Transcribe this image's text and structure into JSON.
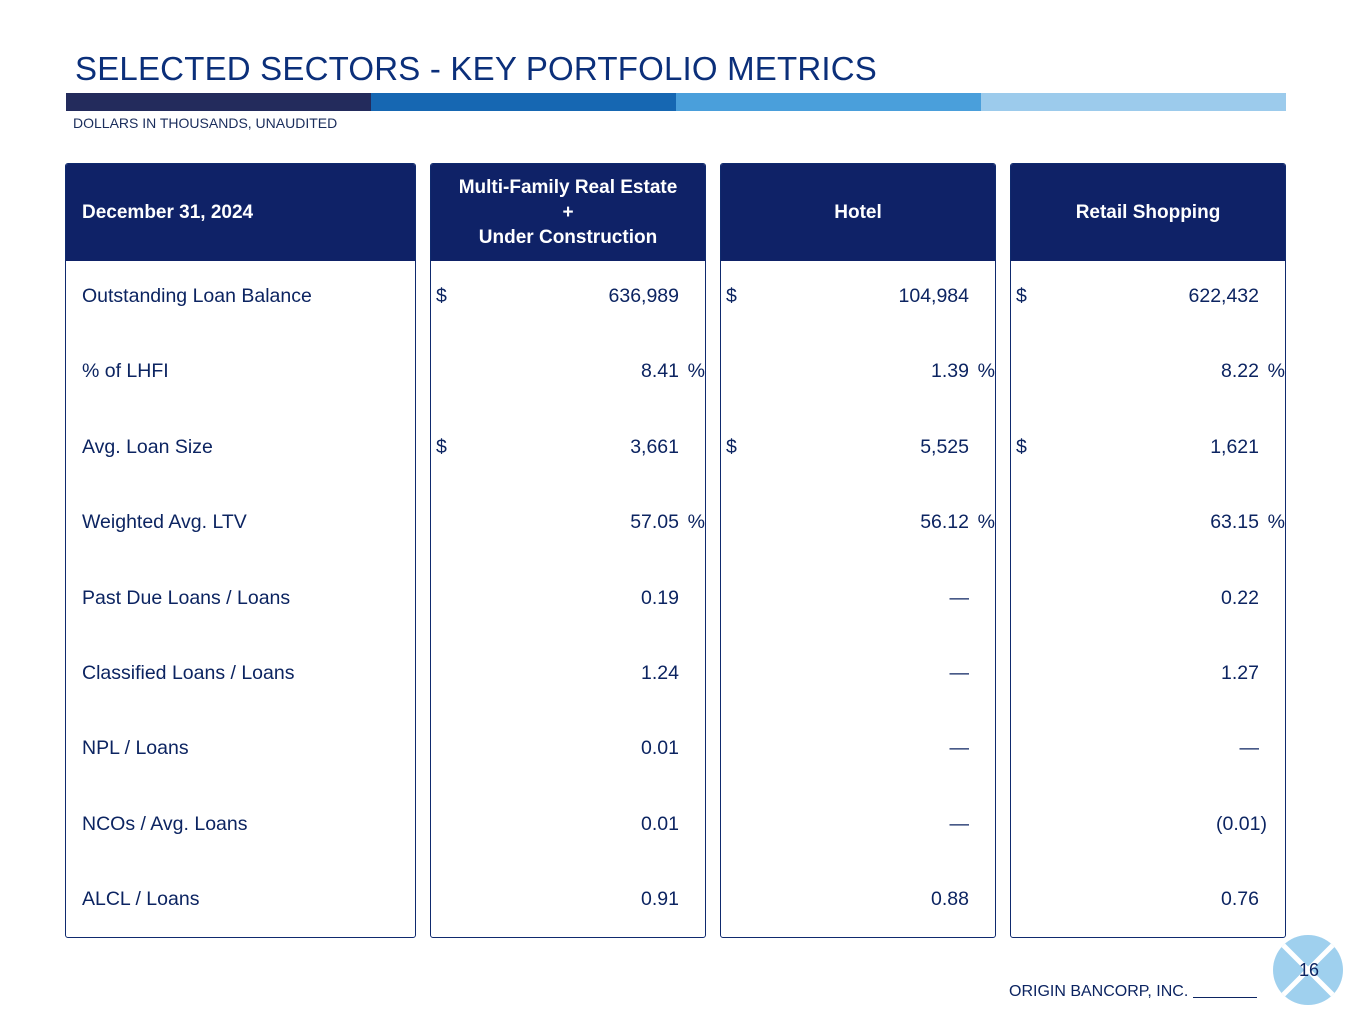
{
  "title": "SELECTED SECTORS - KEY PORTFOLIO METRICS",
  "subtitle": "DOLLARS IN THOUSANDS, UNAUDITED",
  "stripe_colors": [
    "#232b5c",
    "#1667b2",
    "#4a9fdb",
    "#9ccbec"
  ],
  "table": {
    "date_header": "December 31, 2024",
    "row_labels": [
      "Outstanding Loan Balance",
      "% of LHFI",
      "Avg. Loan Size",
      "Weighted Avg. LTV",
      "Past Due Loans / Loans",
      "Classified Loans / Loans",
      "NPL / Loans",
      "NCOs / Avg. Loans",
      "ALCL / Loans"
    ],
    "columns": [
      {
        "header_line1": "Multi-Family Real Estate",
        "header_line2": "+",
        "header_line3": "Under Construction",
        "values": [
          {
            "prefix": "$",
            "value": "636,989"
          },
          {
            "value": "8.41",
            "suffix": "%"
          },
          {
            "prefix": "$",
            "value": "3,661"
          },
          {
            "value": "57.05",
            "suffix": "%"
          },
          {
            "value": "0.19"
          },
          {
            "value": "1.24"
          },
          {
            "value": "0.01"
          },
          {
            "value": "0.01"
          },
          {
            "value": "0.91"
          }
        ]
      },
      {
        "header": "Hotel",
        "values": [
          {
            "prefix": "$",
            "value": "104,984"
          },
          {
            "value": "1.39",
            "suffix": "%"
          },
          {
            "prefix": "$",
            "value": "5,525"
          },
          {
            "value": "56.12",
            "suffix": "%"
          },
          {
            "value": "—"
          },
          {
            "value": "—"
          },
          {
            "value": "—"
          },
          {
            "value": "—"
          },
          {
            "value": "0.88"
          }
        ]
      },
      {
        "header": "Retail Shopping",
        "values": [
          {
            "prefix": "$",
            "value": "622,432"
          },
          {
            "value": "8.22",
            "suffix": "%"
          },
          {
            "prefix": "$",
            "value": "1,621"
          },
          {
            "value": "63.15",
            "suffix": "%"
          },
          {
            "value": "0.22"
          },
          {
            "value": "1.27"
          },
          {
            "value": "—"
          },
          {
            "value": "(0.01)",
            "paren": true
          },
          {
            "value": "0.76"
          }
        ]
      }
    ]
  },
  "footer": {
    "company": "ORIGIN BANCORP, INC.",
    "page_number": "16"
  }
}
